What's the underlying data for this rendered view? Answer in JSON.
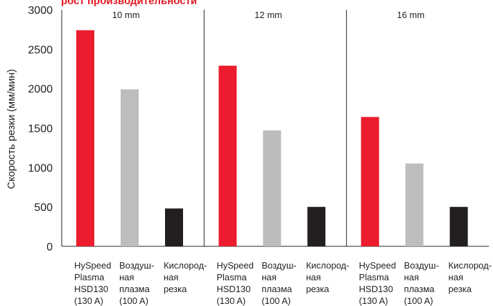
{
  "chart_data": {
    "type": "bar",
    "title": "рост производительности",
    "ylabel": "Скорость резки (мм/мин)",
    "ylim": [
      0,
      3000
    ],
    "yticks": [
      "0",
      "500",
      "1000",
      "1500",
      "2000",
      "2500",
      "3000"
    ],
    "groups": [
      "10 mm",
      "12 mm",
      "16 mm"
    ],
    "categories": [
      [
        "HySpeed",
        "Plasma",
        "HSD130",
        "(130 A)"
      ],
      [
        "Воздуш-",
        "ная",
        "плазма",
        "(100 A)"
      ],
      [
        "Кислород-",
        "ная",
        "резка"
      ]
    ],
    "series": [
      {
        "values": [
          2740,
          2290,
          1640
        ],
        "color": "#ec1c2e"
      },
      {
        "values": [
          1990,
          1470,
          1050
        ],
        "color": "#bdbdbd"
      },
      {
        "values": [
          480,
          500,
          500
        ],
        "color": "#231f20"
      }
    ],
    "grid": false
  }
}
